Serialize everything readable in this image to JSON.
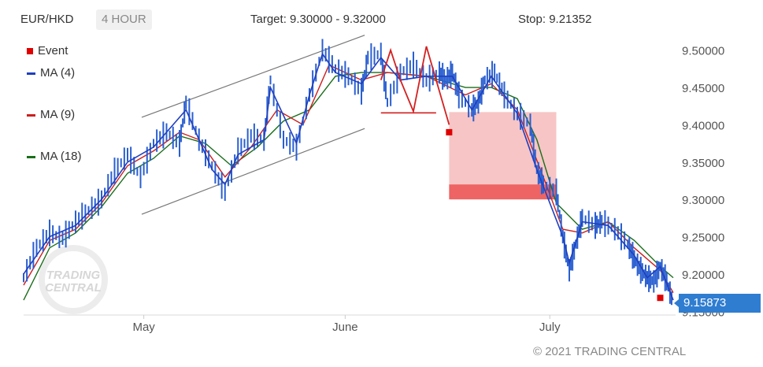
{
  "header": {
    "symbol": "EUR/HKD",
    "timeframe": "4 HOUR",
    "target": "Target: 9.30000 - 9.32000",
    "stop": "Stop: 9.21352"
  },
  "legend": [
    {
      "label": "Event",
      "color": "#e00000",
      "icon": "square-marker"
    },
    {
      "label": "MA (4)",
      "color": "#1f3fbf",
      "icon": "line"
    },
    {
      "label": "MA (9)",
      "color": "#cc1f1f",
      "icon": "line"
    },
    {
      "label": "MA (18)",
      "color": "#1a6e1a",
      "icon": "line"
    }
  ],
  "last_price": "9.15873",
  "watermark": "TRADING CENTRAL",
  "copyright": "© 2021 TRADING CENTRAL",
  "colors": {
    "price": "#2a5fd0",
    "ma4": "#1f3fbf",
    "ma9": "#cc1f1f",
    "ma18": "#1a6e1a",
    "target_zone": "#f7c5c5",
    "target_band": "#ee6363",
    "channel": "#777777",
    "event": "#e00000"
  },
  "chart_data": {
    "type": "line",
    "title": "",
    "ylim": [
      9.145,
      9.525
    ],
    "y_ticks": [
      9.5,
      9.45,
      9.4,
      9.35,
      9.3,
      9.25,
      9.2,
      9.15
    ],
    "y_tick_labels": [
      "9.50000",
      "9.45000",
      "9.40000",
      "9.35000",
      "9.30000",
      "9.25000",
      "9.20000",
      "9.15000"
    ],
    "x_ticks": [
      {
        "label": "May",
        "x": 37
      },
      {
        "label": "June",
        "x": 99
      },
      {
        "label": "July",
        "x": 162
      }
    ],
    "x_range": [
      0,
      200
    ],
    "price_path": [
      [
        0,
        9.195
      ],
      [
        4,
        9.235
      ],
      [
        8,
        9.255
      ],
      [
        12,
        9.248
      ],
      [
        16,
        9.27
      ],
      [
        20,
        9.285
      ],
      [
        24,
        9.3
      ],
      [
        28,
        9.338
      ],
      [
        32,
        9.36
      ],
      [
        36,
        9.33
      ],
      [
        40,
        9.375
      ],
      [
        44,
        9.39
      ],
      [
        48,
        9.375
      ],
      [
        50,
        9.43
      ],
      [
        54,
        9.38
      ],
      [
        58,
        9.345
      ],
      [
        62,
        9.31
      ],
      [
        66,
        9.365
      ],
      [
        70,
        9.385
      ],
      [
        74,
        9.38
      ],
      [
        76,
        9.46
      ],
      [
        80,
        9.38
      ],
      [
        84,
        9.37
      ],
      [
        88,
        9.44
      ],
      [
        92,
        9.5
      ],
      [
        96,
        9.475
      ],
      [
        100,
        9.465
      ],
      [
        104,
        9.445
      ],
      [
        106,
        9.49
      ],
      [
        110,
        9.495
      ],
      [
        112,
        9.43
      ],
      [
        116,
        9.47
      ],
      [
        120,
        9.48
      ],
      [
        124,
        9.46
      ],
      [
        128,
        9.47
      ],
      [
        130,
        9.46
      ],
      [
        132,
        9.47
      ],
      [
        134,
        9.44
      ],
      [
        138,
        9.42
      ],
      [
        140,
        9.43
      ],
      [
        142,
        9.46
      ],
      [
        145,
        9.47
      ],
      [
        148,
        9.44
      ],
      [
        152,
        9.415
      ],
      [
        156,
        9.4
      ],
      [
        158,
        9.34
      ],
      [
        160,
        9.32
      ],
      [
        164,
        9.31
      ],
      [
        166,
        9.25
      ],
      [
        168,
        9.205
      ],
      [
        170,
        9.24
      ],
      [
        172,
        9.275
      ],
      [
        176,
        9.265
      ],
      [
        178,
        9.27
      ],
      [
        182,
        9.26
      ],
      [
        186,
        9.24
      ],
      [
        188,
        9.22
      ],
      [
        190,
        9.205
      ],
      [
        192,
        9.195
      ],
      [
        194,
        9.19
      ],
      [
        196,
        9.21
      ],
      [
        198,
        9.19
      ],
      [
        200,
        9.16
      ]
    ],
    "ma4": [
      [
        0,
        9.2
      ],
      [
        8,
        9.25
      ],
      [
        16,
        9.265
      ],
      [
        24,
        9.3
      ],
      [
        32,
        9.35
      ],
      [
        40,
        9.37
      ],
      [
        44,
        9.39
      ],
      [
        50,
        9.42
      ],
      [
        58,
        9.34
      ],
      [
        62,
        9.32
      ],
      [
        66,
        9.36
      ],
      [
        74,
        9.38
      ],
      [
        76,
        9.45
      ],
      [
        84,
        9.375
      ],
      [
        88,
        9.44
      ],
      [
        92,
        9.495
      ],
      [
        96,
        9.47
      ],
      [
        104,
        9.455
      ],
      [
        110,
        9.49
      ],
      [
        116,
        9.46
      ],
      [
        124,
        9.465
      ],
      [
        132,
        9.465
      ],
      [
        138,
        9.42
      ],
      [
        144,
        9.465
      ],
      [
        152,
        9.415
      ],
      [
        158,
        9.34
      ],
      [
        166,
        9.25
      ],
      [
        168,
        9.215
      ],
      [
        172,
        9.27
      ],
      [
        180,
        9.265
      ],
      [
        188,
        9.225
      ],
      [
        192,
        9.195
      ],
      [
        196,
        9.21
      ],
      [
        200,
        9.165
      ]
    ],
    "ma9": [
      [
        0,
        9.185
      ],
      [
        8,
        9.245
      ],
      [
        16,
        9.26
      ],
      [
        24,
        9.295
      ],
      [
        32,
        9.345
      ],
      [
        40,
        9.365
      ],
      [
        48,
        9.39
      ],
      [
        54,
        9.38
      ],
      [
        62,
        9.33
      ],
      [
        70,
        9.37
      ],
      [
        78,
        9.42
      ],
      [
        86,
        9.4
      ],
      [
        94,
        9.48
      ],
      [
        104,
        9.46
      ],
      [
        112,
        9.47
      ],
      [
        124,
        9.465
      ],
      [
        136,
        9.44
      ],
      [
        144,
        9.455
      ],
      [
        152,
        9.42
      ],
      [
        160,
        9.33
      ],
      [
        166,
        9.26
      ],
      [
        172,
        9.255
      ],
      [
        180,
        9.27
      ],
      [
        188,
        9.235
      ],
      [
        196,
        9.205
      ],
      [
        200,
        9.175
      ]
    ],
    "ma18": [
      [
        0,
        9.165
      ],
      [
        8,
        9.235
      ],
      [
        16,
        9.255
      ],
      [
        24,
        9.29
      ],
      [
        32,
        9.335
      ],
      [
        40,
        9.355
      ],
      [
        48,
        9.385
      ],
      [
        56,
        9.375
      ],
      [
        64,
        9.345
      ],
      [
        72,
        9.37
      ],
      [
        80,
        9.405
      ],
      [
        88,
        9.42
      ],
      [
        96,
        9.465
      ],
      [
        104,
        9.47
      ],
      [
        112,
        9.47
      ],
      [
        124,
        9.465
      ],
      [
        136,
        9.45
      ],
      [
        144,
        9.45
      ],
      [
        152,
        9.435
      ],
      [
        158,
        9.38
      ],
      [
        164,
        9.295
      ],
      [
        172,
        9.26
      ],
      [
        180,
        9.27
      ],
      [
        188,
        9.245
      ],
      [
        196,
        9.21
      ],
      [
        200,
        9.195
      ]
    ],
    "channel": {
      "upper": [
        [
          0,
          9.41
        ],
        [
          105,
          9.52
        ]
      ],
      "lower": [
        [
          0,
          9.28
        ],
        [
          105,
          9.395
        ]
      ]
    },
    "support_line": {
      "y": 9.416,
      "x": [
        110,
        127
      ]
    },
    "zigzag": [
      [
        110,
        9.46
      ],
      [
        113,
        9.5
      ],
      [
        116,
        9.46
      ],
      [
        120,
        9.418
      ],
      [
        124,
        9.505
      ],
      [
        127,
        9.46
      ],
      [
        131,
        9.4
      ]
    ],
    "target_zone": {
      "x": [
        131,
        164
      ],
      "y": [
        9.3,
        9.417
      ]
    },
    "target_band": {
      "x": [
        131,
        164
      ],
      "y": [
        9.3,
        9.32
      ]
    },
    "events": [
      {
        "x": 131,
        "y": 9.39
      },
      {
        "x": 196,
        "y": 9.168
      }
    ]
  }
}
